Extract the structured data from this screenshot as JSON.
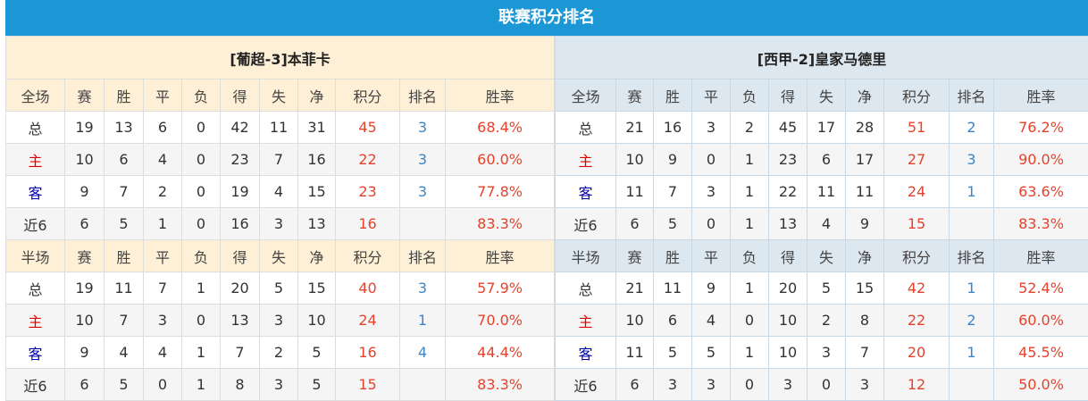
{
  "title": "联赛积分排名",
  "colors": {
    "title_bg": "#1b97d6",
    "points": "#e8412b",
    "rank": "#3a86c8",
    "home": "#e00000",
    "away": "#0000b0"
  },
  "teams": [
    {
      "name": "[葡超-3]本菲卡",
      "sections": [
        {
          "headers": [
            "全场",
            "赛",
            "胜",
            "平",
            "负",
            "得",
            "失",
            "净",
            "积分",
            "排名",
            "胜率"
          ],
          "rows": [
            [
              "总",
              "19",
              "13",
              "6",
              "0",
              "42",
              "11",
              "31",
              "45",
              "3",
              "68.4%"
            ],
            [
              "主",
              "10",
              "6",
              "4",
              "0",
              "23",
              "7",
              "16",
              "22",
              "3",
              "60.0%"
            ],
            [
              "客",
              "9",
              "7",
              "2",
              "0",
              "19",
              "4",
              "15",
              "23",
              "3",
              "77.8%"
            ],
            [
              "近6",
              "6",
              "5",
              "1",
              "0",
              "16",
              "3",
              "13",
              "16",
              "",
              "83.3%"
            ]
          ]
        },
        {
          "headers": [
            "半场",
            "赛",
            "胜",
            "平",
            "负",
            "得",
            "失",
            "净",
            "积分",
            "排名",
            "胜率"
          ],
          "rows": [
            [
              "总",
              "19",
              "11",
              "7",
              "1",
              "20",
              "5",
              "15",
              "40",
              "3",
              "57.9%"
            ],
            [
              "主",
              "10",
              "7",
              "3",
              "0",
              "13",
              "3",
              "10",
              "24",
              "1",
              "70.0%"
            ],
            [
              "客",
              "9",
              "4",
              "4",
              "1",
              "7",
              "2",
              "5",
              "16",
              "4",
              "44.4%"
            ],
            [
              "近6",
              "6",
              "5",
              "0",
              "1",
              "8",
              "3",
              "5",
              "15",
              "",
              "83.3%"
            ]
          ]
        }
      ]
    },
    {
      "name": "[西甲-2]皇家马德里",
      "sections": [
        {
          "headers": [
            "全场",
            "赛",
            "胜",
            "平",
            "负",
            "得",
            "失",
            "净",
            "积分",
            "排名",
            "胜率"
          ],
          "rows": [
            [
              "总",
              "21",
              "16",
              "3",
              "2",
              "45",
              "17",
              "28",
              "51",
              "2",
              "76.2%"
            ],
            [
              "主",
              "10",
              "9",
              "0",
              "1",
              "23",
              "6",
              "17",
              "27",
              "3",
              "90.0%"
            ],
            [
              "客",
              "11",
              "7",
              "3",
              "1",
              "22",
              "11",
              "11",
              "24",
              "1",
              "63.6%"
            ],
            [
              "近6",
              "6",
              "5",
              "0",
              "1",
              "13",
              "4",
              "9",
              "15",
              "",
              "83.3%"
            ]
          ]
        },
        {
          "headers": [
            "半场",
            "赛",
            "胜",
            "平",
            "负",
            "得",
            "失",
            "净",
            "积分",
            "排名",
            "胜率"
          ],
          "rows": [
            [
              "总",
              "21",
              "11",
              "9",
              "1",
              "20",
              "5",
              "15",
              "42",
              "1",
              "52.4%"
            ],
            [
              "主",
              "10",
              "6",
              "4",
              "0",
              "10",
              "2",
              "8",
              "22",
              "2",
              "60.0%"
            ],
            [
              "客",
              "11",
              "5",
              "5",
              "1",
              "10",
              "3",
              "7",
              "20",
              "1",
              "45.5%"
            ],
            [
              "近6",
              "6",
              "3",
              "3",
              "0",
              "3",
              "0",
              "3",
              "12",
              "",
              "50.0%"
            ]
          ]
        }
      ]
    }
  ]
}
